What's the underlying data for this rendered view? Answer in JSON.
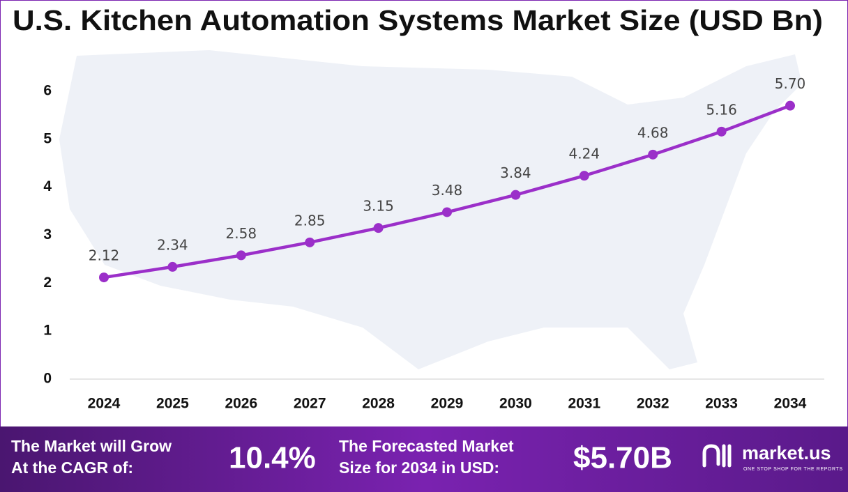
{
  "chart_data": {
    "type": "line",
    "title": "U.S. Kitchen Automation Systems Market Size (USD Bn)",
    "categories": [
      "2024",
      "2025",
      "2026",
      "2027",
      "2028",
      "2029",
      "2030",
      "2031",
      "2032",
      "2033",
      "2034"
    ],
    "values": [
      2.12,
      2.34,
      2.58,
      2.85,
      3.15,
      3.48,
      3.84,
      4.24,
      4.68,
      5.16,
      5.7
    ],
    "value_labels": [
      "2.12",
      "2.34",
      "2.58",
      "2.85",
      "3.15",
      "3.48",
      "3.84",
      "4.24",
      "4.68",
      "5.16",
      "5.70"
    ],
    "color": "#9b2fc9",
    "ylim": [
      0,
      6
    ],
    "yticks": [
      0,
      1,
      2,
      3,
      4,
      5,
      6
    ],
    "grid": false
  },
  "footer": {
    "cagr_text": [
      "The Market will Grow",
      "At the CAGR of:"
    ],
    "cagr": "10.4%",
    "forecast_text": [
      "The Forecasted Market",
      "Size for 2034 in USD:"
    ],
    "forecast": "$5.70B",
    "brand": "market.us",
    "tagline": "ONE STOP SHOP FOR THE REPORTS"
  }
}
